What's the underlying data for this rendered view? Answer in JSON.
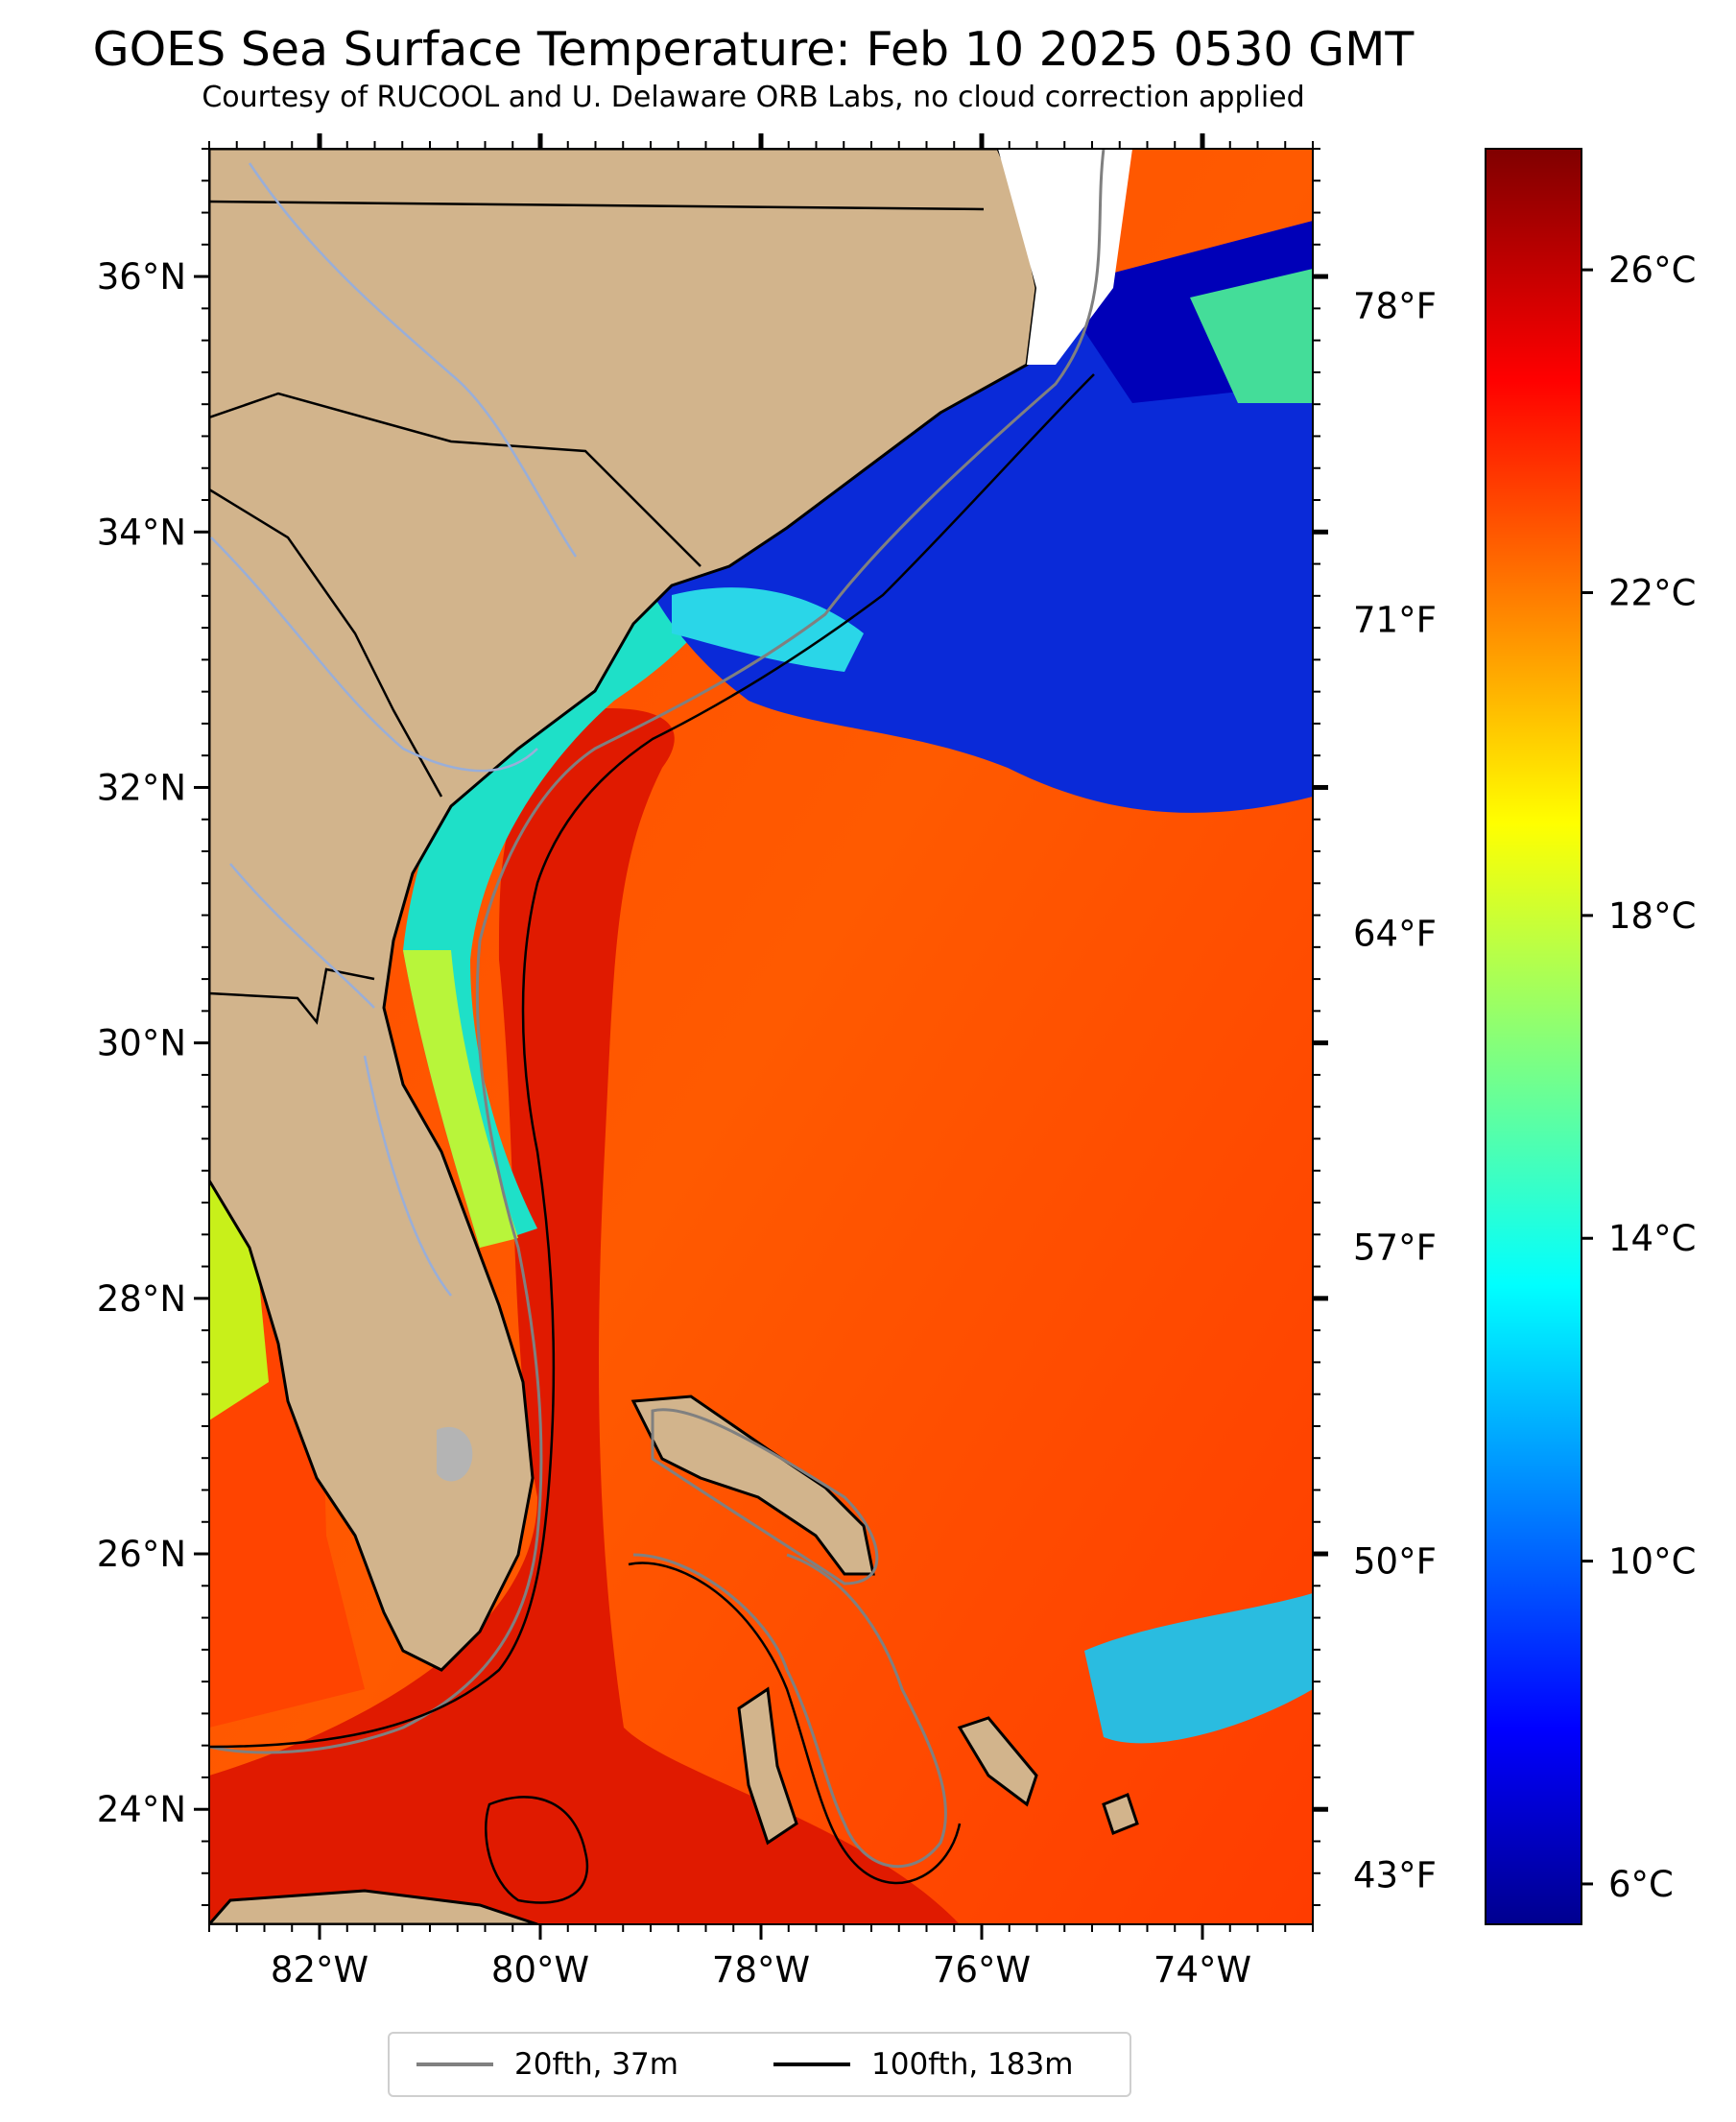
{
  "title": "GOES Sea Surface Temperature: Feb 10 2025 0530 GMT",
  "subtitle": "Courtesy of RUCOOL and U. Delaware ORB Labs, no cloud correction applied",
  "colors": {
    "land": "#d2b48c",
    "border": "#000000",
    "river": "#99aed8",
    "isobath_20fth": "#808080",
    "isobath_100fth": "#000000"
  },
  "map": {
    "lon_range": [
      -83.0,
      -73.0
    ],
    "lat_range": [
      23.1,
      37.0
    ],
    "lat_ticks": [
      {
        "value": 36,
        "label": "36°N"
      },
      {
        "value": 34,
        "label": "34°N"
      },
      {
        "value": 32,
        "label": "32°N"
      },
      {
        "value": 30,
        "label": "30°N"
      },
      {
        "value": 28,
        "label": "28°N"
      },
      {
        "value": 26,
        "label": "26°N"
      },
      {
        "value": 24,
        "label": "24°N"
      }
    ],
    "lon_ticks": [
      {
        "value": -82,
        "label": "82°W"
      },
      {
        "value": -80,
        "label": "80°W"
      },
      {
        "value": -78,
        "label": "78°W"
      },
      {
        "value": -76,
        "label": "76°W"
      },
      {
        "value": -74,
        "label": "74°W"
      }
    ],
    "fahrenheit_ticks": [
      {
        "value": 78,
        "label": "78°F"
      },
      {
        "value": 71,
        "label": "71°F"
      },
      {
        "value": 64,
        "label": "64°F"
      },
      {
        "value": 57,
        "label": "57°F"
      },
      {
        "value": 50,
        "label": "50°F"
      },
      {
        "value": 43,
        "label": "43°F"
      }
    ]
  },
  "colorbar": {
    "range_c": [
      5.5,
      27.5
    ],
    "ticks": [
      {
        "value": 26,
        "label": "26°C"
      },
      {
        "value": 22,
        "label": "22°C"
      },
      {
        "value": 18,
        "label": "18°C"
      },
      {
        "value": 14,
        "label": "14°C"
      },
      {
        "value": 10,
        "label": "10°C"
      },
      {
        "value": 6,
        "label": "6°C"
      }
    ]
  },
  "legend": {
    "items": [
      {
        "label": "20fth, 37m",
        "color": "#808080"
      },
      {
        "label": "100fth, 183m",
        "color": "#000000"
      }
    ]
  }
}
